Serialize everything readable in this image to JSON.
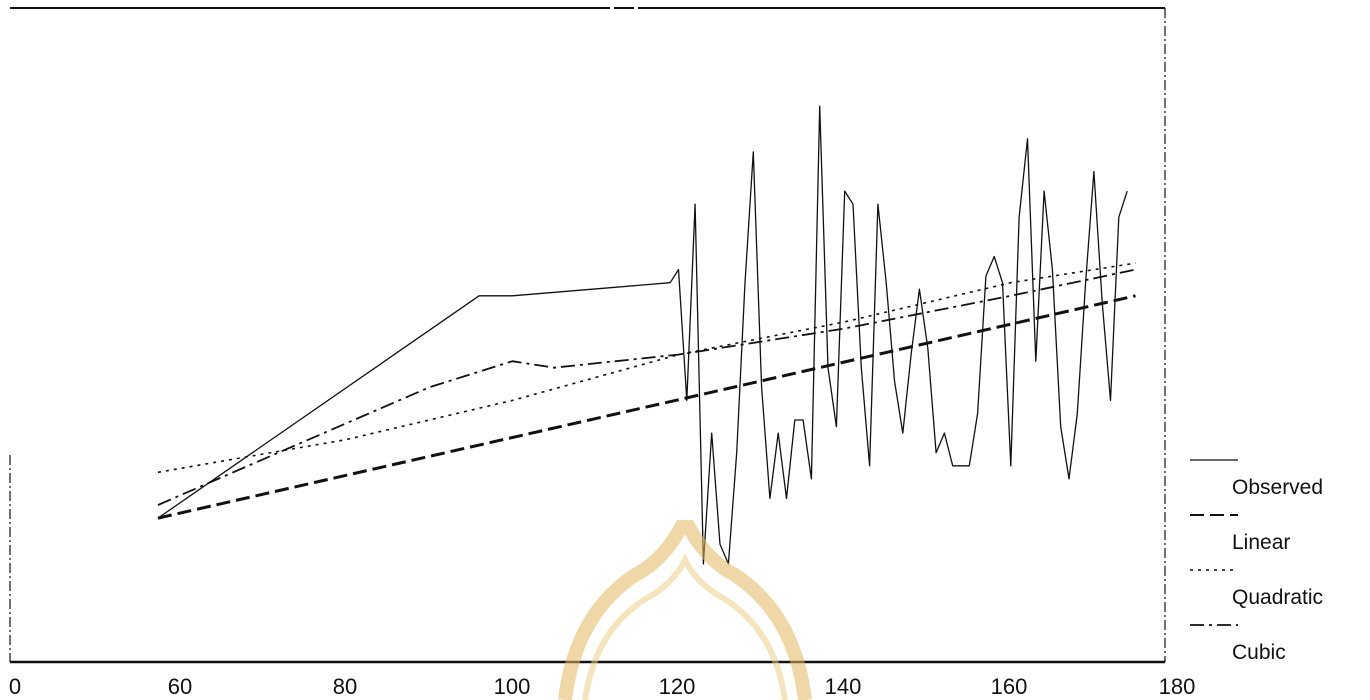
{
  "chart_data": {
    "type": "line",
    "title": "",
    "xlabel": "",
    "ylabel": "",
    "xlim": [
      0,
      180
    ],
    "ylim": [
      0,
      100
    ],
    "grid": false,
    "legend_position": "right",
    "x_ticks": [
      0,
      60,
      80,
      100,
      120,
      140,
      160,
      180
    ],
    "series": [
      {
        "name": "Observed",
        "style": "solid",
        "x": [
          52,
          96,
          100,
          119,
          120,
          121,
          122,
          123,
          124,
          125,
          126,
          127,
          128,
          129,
          130,
          131,
          132,
          133,
          134,
          135,
          136,
          137,
          138,
          139,
          140,
          141,
          142,
          143,
          144,
          145,
          146,
          147,
          148,
          149,
          150,
          151,
          152,
          153,
          154,
          155,
          156,
          157,
          158,
          159,
          160,
          161,
          162,
          163,
          164,
          165,
          166,
          167,
          168,
          169,
          170,
          171,
          172,
          173,
          174
        ],
        "y": [
          22,
          56,
          56,
          58,
          60,
          40,
          70,
          15,
          35,
          18,
          15,
          32,
          58,
          78,
          42,
          25,
          35,
          25,
          37,
          37,
          28,
          85,
          45,
          36,
          72,
          70,
          45,
          30,
          70,
          58,
          43,
          35,
          47,
          57,
          48,
          32,
          35,
          30,
          30,
          30,
          38,
          59,
          62,
          58,
          30,
          68,
          80,
          46,
          72,
          60,
          36,
          28,
          38,
          58,
          75,
          55,
          40,
          68,
          72
        ]
      },
      {
        "name": "Linear",
        "style": "dashed",
        "x": [
          52,
          175
        ],
        "y": [
          22,
          56
        ]
      },
      {
        "name": "Quadratic",
        "style": "dotted",
        "x": [
          52,
          80,
          100,
          120,
          140,
          160,
          175
        ],
        "y": [
          29,
          34,
          40,
          47,
          52,
          58,
          61
        ]
      },
      {
        "name": "Cubic",
        "style": "dashdot",
        "x": [
          52,
          70,
          90,
          100,
          105,
          120,
          140,
          160,
          175
        ],
        "y": [
          24,
          31,
          42,
          46,
          45,
          47,
          51,
          56,
          60
        ]
      }
    ]
  }
}
